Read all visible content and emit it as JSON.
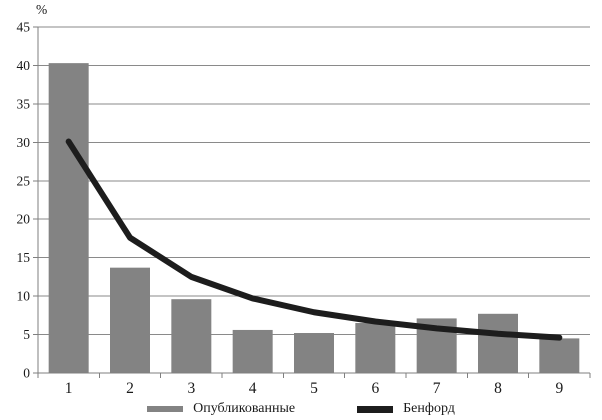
{
  "chart_data": {
    "type": "bar",
    "subtype": "bar-with-line-overlay",
    "title": "",
    "categories": [
      "1",
      "2",
      "3",
      "4",
      "5",
      "6",
      "7",
      "8",
      "9"
    ],
    "series": [
      {
        "name": "Опубликованные",
        "kind": "bar",
        "color": "#838383",
        "values": [
          40.3,
          13.7,
          9.6,
          5.6,
          5.2,
          6.5,
          7.1,
          7.7,
          4.5
        ]
      },
      {
        "name": "Бенфорд",
        "kind": "line",
        "color": "#1d1d1d",
        "values": [
          30.1,
          17.6,
          12.5,
          9.7,
          7.9,
          6.7,
          5.8,
          5.1,
          4.6
        ]
      }
    ],
    "xlabel": "",
    "ylabel": "%",
    "ylim": [
      0,
      45
    ],
    "ytick_step": 5,
    "grid": true,
    "gridline_color": "#8a8a8a",
    "axis_color": "#7f7f7f",
    "text_color": "#1a1a1a",
    "legend_position": "bottom"
  }
}
